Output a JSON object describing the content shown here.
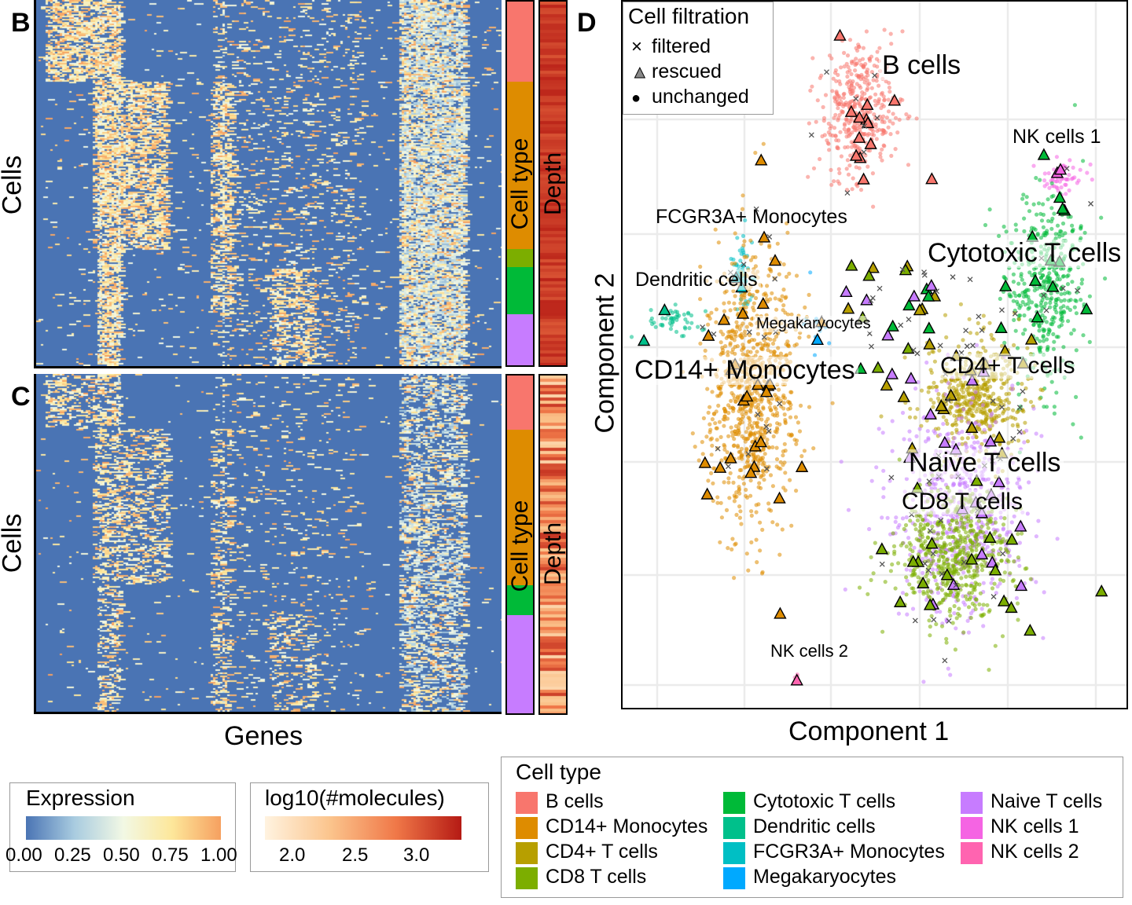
{
  "panels": {
    "B": "B",
    "C": "C",
    "D": "D"
  },
  "heatmap": {
    "y_label": "Cells",
    "x_label": "Genes",
    "strip_celltype_label": "Cell type",
    "strip_depth_label": "Depth"
  },
  "scatter": {
    "x_label": "Component 1",
    "y_label": "Component 2"
  },
  "filtration_legend": {
    "title": "Cell filtration",
    "items": [
      {
        "symbol": "×",
        "label": "filtered"
      },
      {
        "symbol": "▲",
        "label": "rescued"
      },
      {
        "symbol": "●",
        "label": "unchanged"
      }
    ]
  },
  "expression_legend": {
    "title": "Expression",
    "ticks": [
      "0.00",
      "0.25",
      "0.50",
      "0.75",
      "1.00"
    ],
    "colors": [
      "#4a74b4",
      "#a9cce0",
      "#f2f8e4",
      "#fde79a",
      "#f6a060"
    ]
  },
  "molecules_legend": {
    "title": "log10(#molecules)",
    "ticks": [
      "2.0",
      "2.5",
      "3.0"
    ],
    "colors": [
      "#fff3e0",
      "#fbc48c",
      "#f07848",
      "#b51a14"
    ]
  },
  "celltype_legend": {
    "title": "Cell type",
    "items": [
      {
        "label": "B cells",
        "color": "#f8766d"
      },
      {
        "label": "CD14+ Monocytes",
        "color": "#de8c00"
      },
      {
        "label": "CD4+ T cells",
        "color": "#b79f00"
      },
      {
        "label": "CD8 T cells",
        "color": "#7cae00"
      },
      {
        "label": "Cytotoxic T cells",
        "color": "#00ba38"
      },
      {
        "label": "Dendritic cells",
        "color": "#00c08b"
      },
      {
        "label": "FCGR3A+ Monocytes",
        "color": "#00bfc4"
      },
      {
        "label": "Megakaryocytes",
        "color": "#00a9ff"
      },
      {
        "label": "Naive T cells",
        "color": "#c77cff"
      },
      {
        "label": "NK cells 1",
        "color": "#f564e3"
      },
      {
        "label": "NK cells 2",
        "color": "#ff64b0"
      }
    ]
  },
  "cluster_labels": [
    {
      "key": "B cells",
      "text": "B cells"
    },
    {
      "key": "NK cells 1",
      "text": "NK cells 1"
    },
    {
      "key": "FCGR3A+ Monocytes",
      "text": "FCGR3A+ Monocytes"
    },
    {
      "key": "Cytotoxic T cells",
      "text": "Cytotoxic T cells"
    },
    {
      "key": "Dendritic cells",
      "text": "Dendritic cells"
    },
    {
      "key": "Megakaryocytes",
      "text": "Megakaryocytes"
    },
    {
      "key": "CD14+ Monocytes",
      "text": "CD14+ Monocytes"
    },
    {
      "key": "CD4+ T cells",
      "text": "CD4+ T cells"
    },
    {
      "key": "Naive T cells",
      "text": "Naive T cells"
    },
    {
      "key": "CD8 T cells",
      "text": "CD8 T cells"
    },
    {
      "key": "NK cells 2",
      "text": "NK cells 2"
    }
  ],
  "chart_data": [
    {
      "type": "heatmap",
      "panel": "B",
      "ylabel": "Cells",
      "annotation_strips": [
        "Cell type",
        "Depth"
      ],
      "celltype_fractions": [
        {
          "type": "B cells",
          "fraction": 0.22
        },
        {
          "type": "CD14+ Monocytes",
          "fraction": 0.46
        },
        {
          "type": "CD8 T cells",
          "fraction": 0.05
        },
        {
          "type": "Cytotoxic T cells",
          "fraction": 0.13
        },
        {
          "type": "Naive T cells",
          "fraction": 0.14
        }
      ]
    },
    {
      "type": "heatmap",
      "panel": "C",
      "ylabel": "Cells",
      "xlabel": "Genes",
      "annotation_strips": [
        "Cell type",
        "Depth"
      ],
      "celltype_fractions": [
        {
          "type": "B cells",
          "fraction": 0.16
        },
        {
          "type": "CD14+ Monocytes",
          "fraction": 0.46
        },
        {
          "type": "Cytotoxic T cells",
          "fraction": 0.09
        },
        {
          "type": "Naive T cells",
          "fraction": 0.29
        }
      ]
    },
    {
      "type": "scatter",
      "panel": "D",
      "xlabel": "Component 1",
      "ylabel": "Component 2",
      "grid": true,
      "legend_position": "top-left",
      "clusters": [
        {
          "name": "B cells",
          "cx": 0.47,
          "cy": 0.85,
          "sx": 0.04,
          "sy": 0.045,
          "n": 420
        },
        {
          "name": "NK cells 1",
          "cx": 0.88,
          "cy": 0.76,
          "sx": 0.02,
          "sy": 0.015,
          "n": 60
        },
        {
          "name": "FCGR3A+ Monocytes",
          "cx": 0.23,
          "cy": 0.62,
          "sx": 0.01,
          "sy": 0.025,
          "n": 60
        },
        {
          "name": "Cytotoxic T cells",
          "cx": 0.85,
          "cy": 0.6,
          "sx": 0.04,
          "sy": 0.07,
          "n": 420
        },
        {
          "name": "Dendritic cells",
          "cx": 0.09,
          "cy": 0.55,
          "sx": 0.03,
          "sy": 0.012,
          "n": 50
        },
        {
          "name": "Megakaryocytes",
          "cx": 0.37,
          "cy": 0.54,
          "sx": 0.02,
          "sy": 0.02,
          "n": 12
        },
        {
          "name": "CD14+ Monocytes",
          "cx": 0.25,
          "cy": 0.45,
          "sx": 0.045,
          "sy": 0.1,
          "n": 900
        },
        {
          "name": "CD4+ T cells",
          "cx": 0.71,
          "cy": 0.44,
          "sx": 0.05,
          "sy": 0.04,
          "n": 500
        },
        {
          "name": "Naive T cells",
          "cx": 0.68,
          "cy": 0.28,
          "sx": 0.07,
          "sy": 0.08,
          "n": 600
        },
        {
          "name": "CD8 T cells",
          "cx": 0.66,
          "cy": 0.21,
          "sx": 0.06,
          "sy": 0.05,
          "n": 600
        },
        {
          "name": "NK cells 2",
          "cx": 0.34,
          "cy": 0.03,
          "sx": 0.004,
          "sy": 0.004,
          "n": 4
        }
      ]
    }
  ]
}
